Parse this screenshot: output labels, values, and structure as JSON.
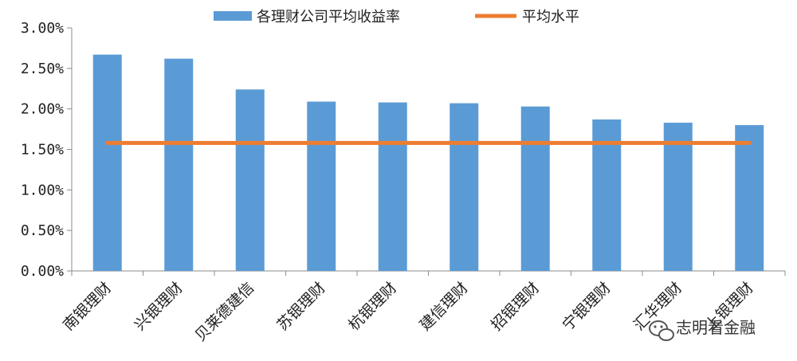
{
  "chart_data": {
    "type": "bar",
    "categories": [
      "南银理财",
      "兴银理财",
      "贝莱德建信",
      "苏银理财",
      "杭银理财",
      "建信理财",
      "招银理财",
      "宁银理财",
      "汇华理财",
      "上银理财"
    ],
    "series": [
      {
        "name": "各理财公司平均收益率",
        "type": "bar",
        "color": "#5b9bd5",
        "values": [
          2.67,
          2.62,
          2.24,
          2.09,
          2.08,
          2.07,
          2.03,
          1.87,
          1.83,
          1.8
        ]
      },
      {
        "name": "平均水平",
        "type": "line",
        "color": "#ed7d31",
        "values": [
          1.58,
          1.58,
          1.58,
          1.58,
          1.58,
          1.58,
          1.58,
          1.58,
          1.58,
          1.58
        ]
      }
    ],
    "ylim": [
      0,
      3.0
    ],
    "yticks": [
      "0.00%",
      "0.50%",
      "1.00%",
      "1.50%",
      "2.00%",
      "2.50%",
      "3.00%"
    ],
    "ytick_values": [
      0,
      0.5,
      1.0,
      1.5,
      2.0,
      2.5,
      3.0
    ],
    "legend_position": "top",
    "grid": false
  },
  "watermark": {
    "text": "志明看金融",
    "icon": "wechat-icon"
  }
}
